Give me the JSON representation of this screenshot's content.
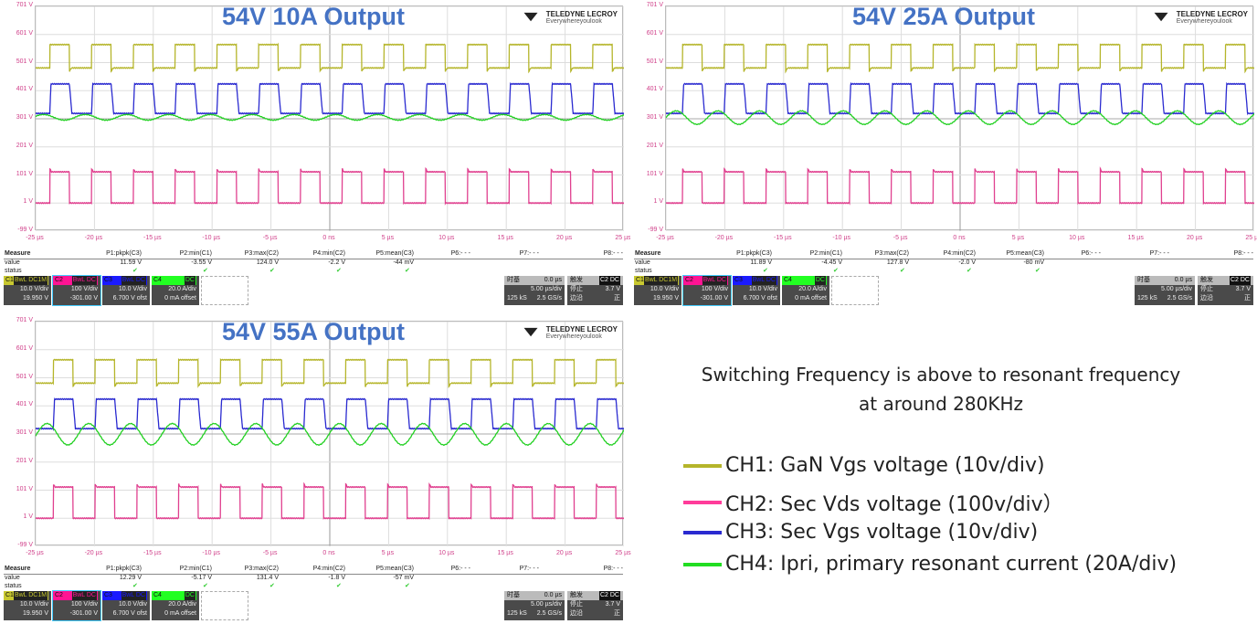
{
  "chart_data": [
    {
      "type": "line",
      "title": "54V 10A Output",
      "y_ticks": [
        "701 V",
        "601 V",
        "501 V",
        "401 V",
        "301 V",
        "201 V",
        "101 V",
        "1 V",
        "-99 V"
      ],
      "ylim": [
        -99,
        701
      ],
      "x_ticks": [
        "-25 µs",
        "-20 µs",
        "-15 µs",
        "-10 µs",
        "-5 µs",
        "0 ns",
        "5 µs",
        "10 µs",
        "15 µs",
        "20 µs",
        "25 µs"
      ],
      "xlim": [
        -25,
        25
      ],
      "grid": true,
      "period_us": 3.55,
      "first_edge_us": -23.8,
      "series": [
        {
          "name": "C1",
          "color": "#b5b52a",
          "kind": "square",
          "high": 565,
          "low": 482
        },
        {
          "name": "C3",
          "color": "#2a2ad0",
          "kind": "square",
          "high": 425,
          "low": 320
        },
        {
          "name": "C4",
          "color": "#22d022",
          "kind": "sine",
          "center": 306,
          "amp": 10
        },
        {
          "name": "C2",
          "color": "#e0408f",
          "kind": "square",
          "high": 112,
          "low": 1
        }
      ]
    },
    {
      "type": "line",
      "title": "54V 25A Output",
      "y_ticks": [
        "701 V",
        "601 V",
        "501 V",
        "401 V",
        "301 V",
        "201 V",
        "101 V",
        "1 V",
        "-99 V"
      ],
      "ylim": [
        -99,
        701
      ],
      "x_ticks": [
        "-25 µs",
        "-20 µs",
        "-15 µs",
        "-10 µs",
        "-5 µs",
        "0 ns",
        "5 µs",
        "10 µs",
        "15 µs",
        "20 µs",
        "25 µs"
      ],
      "xlim": [
        -25,
        25
      ],
      "grid": true,
      "period_us": 3.55,
      "first_edge_us": -23.6,
      "series": [
        {
          "name": "C1",
          "color": "#b5b52a",
          "kind": "square",
          "high": 565,
          "low": 482
        },
        {
          "name": "C3",
          "color": "#2a2ad0",
          "kind": "square",
          "high": 425,
          "low": 320
        },
        {
          "name": "C4",
          "color": "#22d022",
          "kind": "sine",
          "center": 305,
          "amp": 24
        },
        {
          "name": "C2",
          "color": "#e0408f",
          "kind": "square",
          "high": 112,
          "low": 1
        }
      ]
    },
    {
      "type": "line",
      "title": "54V 55A Output",
      "y_ticks": [
        "701 V",
        "601 V",
        "501 V",
        "401 V",
        "301 V",
        "201 V",
        "101 V",
        "1 V",
        "-99 V"
      ],
      "ylim": [
        -99,
        701
      ],
      "x_ticks": [
        "-25 µs",
        "-20 µs",
        "-15 µs",
        "-10 µs",
        "-5 µs",
        "0 ns",
        "5 µs",
        "10 µs",
        "15 µs",
        "20 µs",
        "25 µs"
      ],
      "xlim": [
        -25,
        25
      ],
      "grid": true,
      "period_us": 3.55,
      "first_edge_us": -23.5,
      "series": [
        {
          "name": "C1",
          "color": "#b5b52a",
          "kind": "square",
          "high": 565,
          "low": 482
        },
        {
          "name": "C3",
          "color": "#2a2ad0",
          "kind": "square",
          "high": 425,
          "low": 320
        },
        {
          "name": "C4",
          "color": "#22d022",
          "kind": "sine",
          "center": 300,
          "amp": 38
        },
        {
          "name": "C2",
          "color": "#e0408f",
          "kind": "square",
          "high": 112,
          "low": 1
        }
      ]
    }
  ],
  "logo": {
    "brand": "TELEDYNE LECROY",
    "tagline": "Everywhereyoulook"
  },
  "measure_labels": {
    "header": "Measure",
    "value": "value",
    "status": "status",
    "check": "✔"
  },
  "params": [
    "P1:pkpk(C3)",
    "P2:min(C1)",
    "P3:max(C2)",
    "P4:min(C2)",
    "P5:mean(C3)",
    "P6:- - -",
    "P7:- - -",
    "P8:- - -"
  ],
  "measurements": [
    [
      "11.59 V",
      "-3.55 V",
      "124.0 V",
      "-2.2 V",
      "-44 mV"
    ],
    [
      "11.89 V",
      "-4.45 V",
      "127.8 V",
      "-2.0 V",
      "-80 mV"
    ],
    [
      "12.29 V",
      "-5.17 V",
      "131.4 V",
      "-1.8 V",
      "-57 mV"
    ]
  ],
  "channels": [
    {
      "id": "C1",
      "badge": "BwL DC1M",
      "scale": "10.0 V/div",
      "offset": "19.950 V",
      "color": "#c8c830"
    },
    {
      "id": "C2",
      "badge": "BwL DC",
      "scale": "100 V/div",
      "offset": "-301.00 V",
      "color": "#ff1493"
    },
    {
      "id": "C3",
      "badge": "BwL DC",
      "scale": "10.0 V/div",
      "offset": "6.700 V ofst",
      "color": "#1a1aff"
    },
    {
      "id": "C4",
      "badge": "DC",
      "scale": "20.0 A/div",
      "offset": "0 mA offset",
      "color": "#22ff22"
    }
  ],
  "timebase": {
    "label": "时基",
    "delay": "0.0 µs",
    "scale": "5.00 µs/div",
    "samples": "125 kS",
    "rate": "2.5 GS/s"
  },
  "trigger": {
    "label": "触发",
    "src": "C2",
    "coupling": "DC",
    "state": "停止",
    "level": "3.7 V",
    "mode": "边沿",
    "slope": "正"
  },
  "note": {
    "line1": "Switching Frequency is above to resonant frequency",
    "line2": "at around 280KHz"
  },
  "legend": [
    {
      "text": "CH1: GaN Vgs voltage (10v/div)",
      "color": "#b5b52a"
    },
    {
      "text": "CH2: Sec Vds voltage (100v/div）",
      "color": "#ff3c9a"
    },
    {
      "text": "CH3: Sec Vgs voltage (10v/div)",
      "color": "#2a2ad0"
    },
    {
      "text": "CH4: Ipri, primary resonant current (20A/div)",
      "color": "#22dd22"
    }
  ]
}
